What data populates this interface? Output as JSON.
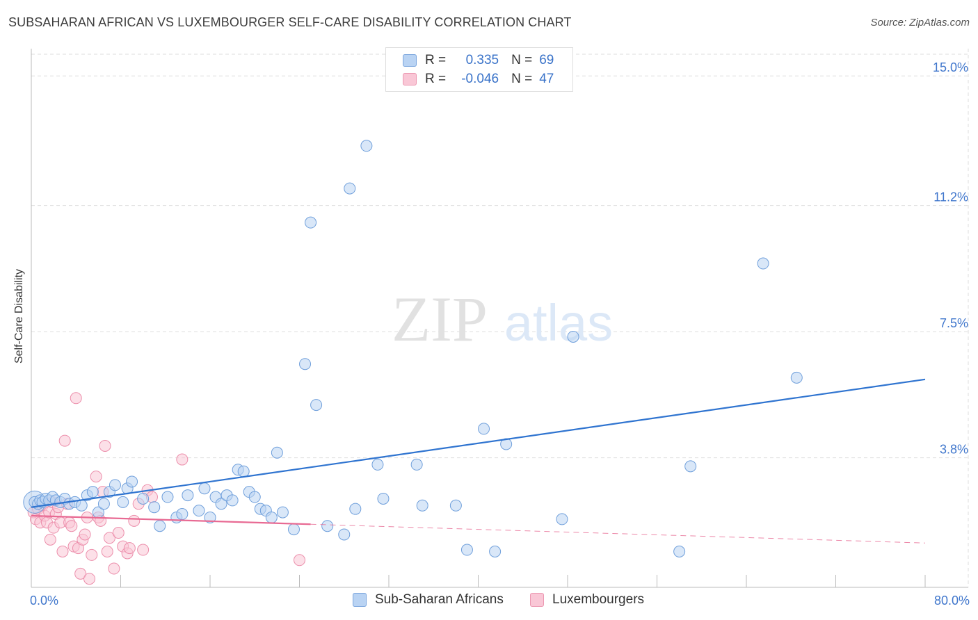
{
  "header": {
    "title": "SUBSAHARAN AFRICAN VS LUXEMBOURGER SELF-CARE DISABILITY CORRELATION CHART",
    "source": "Source: ZipAtlas.com"
  },
  "legend": {
    "rows": [
      {
        "r_label": "R =",
        "r_value": "0.335",
        "n_label": "N =",
        "n_value": "69"
      },
      {
        "r_label": "R =",
        "r_value": "-0.046",
        "n_label": "N =",
        "n_value": "47"
      }
    ]
  },
  "watermark": {
    "zip": "ZIP",
    "atlas": "atlas"
  },
  "colors": {
    "blue_fill": "#b9d3f3",
    "blue_stroke": "#6f9fdb",
    "blue_line": "#2f74d0",
    "pink_fill": "#f9c7d6",
    "pink_stroke": "#ec8eab",
    "pink_line": "#e86a93",
    "tick_label": "#3f76cc",
    "grid": "#dddddd"
  },
  "chart_data": {
    "type": "scatter",
    "title": "SUBSAHARAN AFRICAN VS LUXEMBOURGER SELF-CARE DISABILITY CORRELATION CHART",
    "xlabel": "",
    "ylabel": "Self-Care Disability",
    "xlim": [
      0,
      80
    ],
    "ylim": [
      0,
      15.8
    ],
    "x_tick_labels": [
      {
        "value": 0,
        "label": "0.0%"
      },
      {
        "value": 80,
        "label": "80.0%"
      }
    ],
    "x_minor_ticks": [
      8,
      16,
      24,
      32,
      40,
      48,
      56,
      64,
      72,
      80
    ],
    "y_ticks": [
      {
        "value": 3.8,
        "label": "3.8%"
      },
      {
        "value": 7.5,
        "label": "7.5%"
      },
      {
        "value": 11.2,
        "label": "11.2%"
      },
      {
        "value": 15.0,
        "label": "15.0%"
      }
    ],
    "series": [
      {
        "name": "Sub-Saharan Africans",
        "color": "#b9d3f3",
        "r": 0.335,
        "n": 69,
        "trend": {
          "x0": 0,
          "y0": 2.35,
          "x1": 80,
          "y1": 6.1
        },
        "points": [
          [
            0.3,
            2.5
          ],
          [
            0.6,
            2.45
          ],
          [
            0.8,
            2.55
          ],
          [
            1.0,
            2.5
          ],
          [
            1.3,
            2.6
          ],
          [
            1.6,
            2.55
          ],
          [
            1.9,
            2.65
          ],
          [
            2.2,
            2.55
          ],
          [
            2.6,
            2.5
          ],
          [
            3.0,
            2.6
          ],
          [
            3.4,
            2.45
          ],
          [
            3.9,
            2.5
          ],
          [
            4.5,
            2.4
          ],
          [
            5.0,
            2.7
          ],
          [
            5.5,
            2.8
          ],
          [
            6.0,
            2.2
          ],
          [
            6.5,
            2.45
          ],
          [
            7.0,
            2.8
          ],
          [
            7.5,
            3.0
          ],
          [
            8.2,
            2.5
          ],
          [
            8.6,
            2.9
          ],
          [
            9.0,
            3.1
          ],
          [
            10.0,
            2.6
          ],
          [
            11.0,
            2.35
          ],
          [
            11.5,
            1.8
          ],
          [
            12.2,
            2.65
          ],
          [
            13.0,
            2.05
          ],
          [
            13.5,
            2.15
          ],
          [
            14.0,
            2.7
          ],
          [
            15.0,
            2.25
          ],
          [
            15.5,
            2.9
          ],
          [
            16.0,
            2.05
          ],
          [
            16.5,
            2.65
          ],
          [
            17.0,
            2.45
          ],
          [
            17.5,
            2.7
          ],
          [
            18.0,
            2.55
          ],
          [
            18.5,
            3.45
          ],
          [
            19.0,
            3.4
          ],
          [
            19.5,
            2.8
          ],
          [
            20.0,
            2.65
          ],
          [
            20.5,
            2.3
          ],
          [
            21.0,
            2.25
          ],
          [
            21.5,
            2.05
          ],
          [
            22.0,
            3.95
          ],
          [
            22.5,
            2.2
          ],
          [
            23.5,
            1.7
          ],
          [
            24.5,
            6.55
          ],
          [
            25.0,
            10.7
          ],
          [
            25.5,
            5.35
          ],
          [
            26.5,
            1.8
          ],
          [
            28.0,
            1.55
          ],
          [
            28.5,
            11.7
          ],
          [
            29.0,
            2.3
          ],
          [
            30.0,
            12.95
          ],
          [
            31.0,
            3.6
          ],
          [
            31.5,
            2.6
          ],
          [
            34.5,
            3.6
          ],
          [
            35.0,
            2.4
          ],
          [
            38.0,
            2.4
          ],
          [
            39.0,
            1.1
          ],
          [
            40.5,
            4.65
          ],
          [
            41.5,
            1.05
          ],
          [
            42.5,
            4.2
          ],
          [
            47.5,
            2.0
          ],
          [
            48.5,
            7.35
          ],
          [
            58.0,
            1.05
          ],
          [
            59.0,
            3.55
          ],
          [
            65.5,
            9.5
          ],
          [
            68.5,
            6.15
          ]
        ]
      },
      {
        "name": "Luxembourgers",
        "color": "#f9c7d6",
        "r": -0.046,
        "n": 47,
        "trend": {
          "x0": 0,
          "y0": 2.1,
          "x1": 25,
          "y1": 1.85
        },
        "trend_extended": {
          "x0": 25,
          "y0": 1.85,
          "x1": 80,
          "y1": 1.3
        },
        "points": [
          [
            0.2,
            2.2
          ],
          [
            0.4,
            2.0
          ],
          [
            0.6,
            2.3
          ],
          [
            0.8,
            1.9
          ],
          [
            1.0,
            2.4
          ],
          [
            1.2,
            2.1
          ],
          [
            1.4,
            1.9
          ],
          [
            1.6,
            2.2
          ],
          [
            1.7,
            1.4
          ],
          [
            1.9,
            2.5
          ],
          [
            2.0,
            1.75
          ],
          [
            2.2,
            2.15
          ],
          [
            2.4,
            2.35
          ],
          [
            2.6,
            1.9
          ],
          [
            2.8,
            1.05
          ],
          [
            3.0,
            4.3
          ],
          [
            3.2,
            2.45
          ],
          [
            3.4,
            1.9
          ],
          [
            3.6,
            1.8
          ],
          [
            3.8,
            1.2
          ],
          [
            4.0,
            5.55
          ],
          [
            4.2,
            1.15
          ],
          [
            4.4,
            0.4
          ],
          [
            4.6,
            1.4
          ],
          [
            4.8,
            1.55
          ],
          [
            5.0,
            2.05
          ],
          [
            5.2,
            0.25
          ],
          [
            5.4,
            0.95
          ],
          [
            5.8,
            3.25
          ],
          [
            6.0,
            2.05
          ],
          [
            6.2,
            1.95
          ],
          [
            6.4,
            2.8
          ],
          [
            6.6,
            4.15
          ],
          [
            6.8,
            1.05
          ],
          [
            7.0,
            1.45
          ],
          [
            7.4,
            0.55
          ],
          [
            7.8,
            1.6
          ],
          [
            8.2,
            1.2
          ],
          [
            8.6,
            1.0
          ],
          [
            8.8,
            1.15
          ],
          [
            9.2,
            1.95
          ],
          [
            9.6,
            2.45
          ],
          [
            10.0,
            1.1
          ],
          [
            10.4,
            2.85
          ],
          [
            10.8,
            2.65
          ],
          [
            13.5,
            3.75
          ],
          [
            24.0,
            0.8
          ]
        ]
      }
    ]
  }
}
